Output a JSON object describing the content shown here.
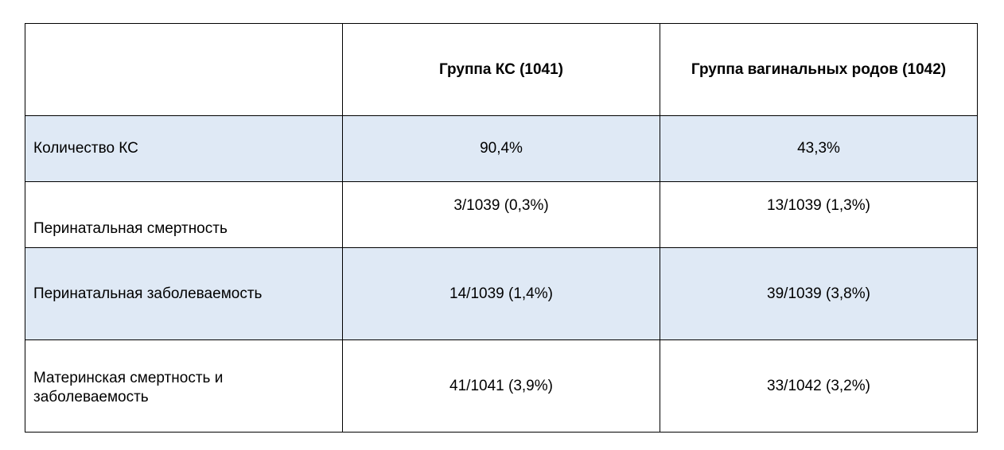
{
  "table": {
    "header": {
      "col0": "",
      "col1": "Группа КС (1041)",
      "col2": "Группа вагинальных родов (1042)"
    },
    "rows": [
      {
        "label": "Количество КС",
        "cs": "90,4%",
        "vaginal": "43,3%",
        "shaded": true
      },
      {
        "label": "Перинатальная смертность",
        "cs": "3/1039 (0,3%)",
        "vaginal": "13/1039 (1,3%)",
        "shaded": false
      },
      {
        "label": "Перинатальная заболеваемость",
        "cs": "14/1039 (1,4%)",
        "vaginal": "39/1039 (3,8%)",
        "shaded": true
      },
      {
        "label": "Материнская смертность и заболеваемость",
        "cs": "41/1041 (3,9%)",
        "vaginal": "33/1042 (3,2%)",
        "shaded": false
      }
    ],
    "colors": {
      "shaded_row_bg": "#dfe9f5",
      "border": "#000000"
    }
  }
}
